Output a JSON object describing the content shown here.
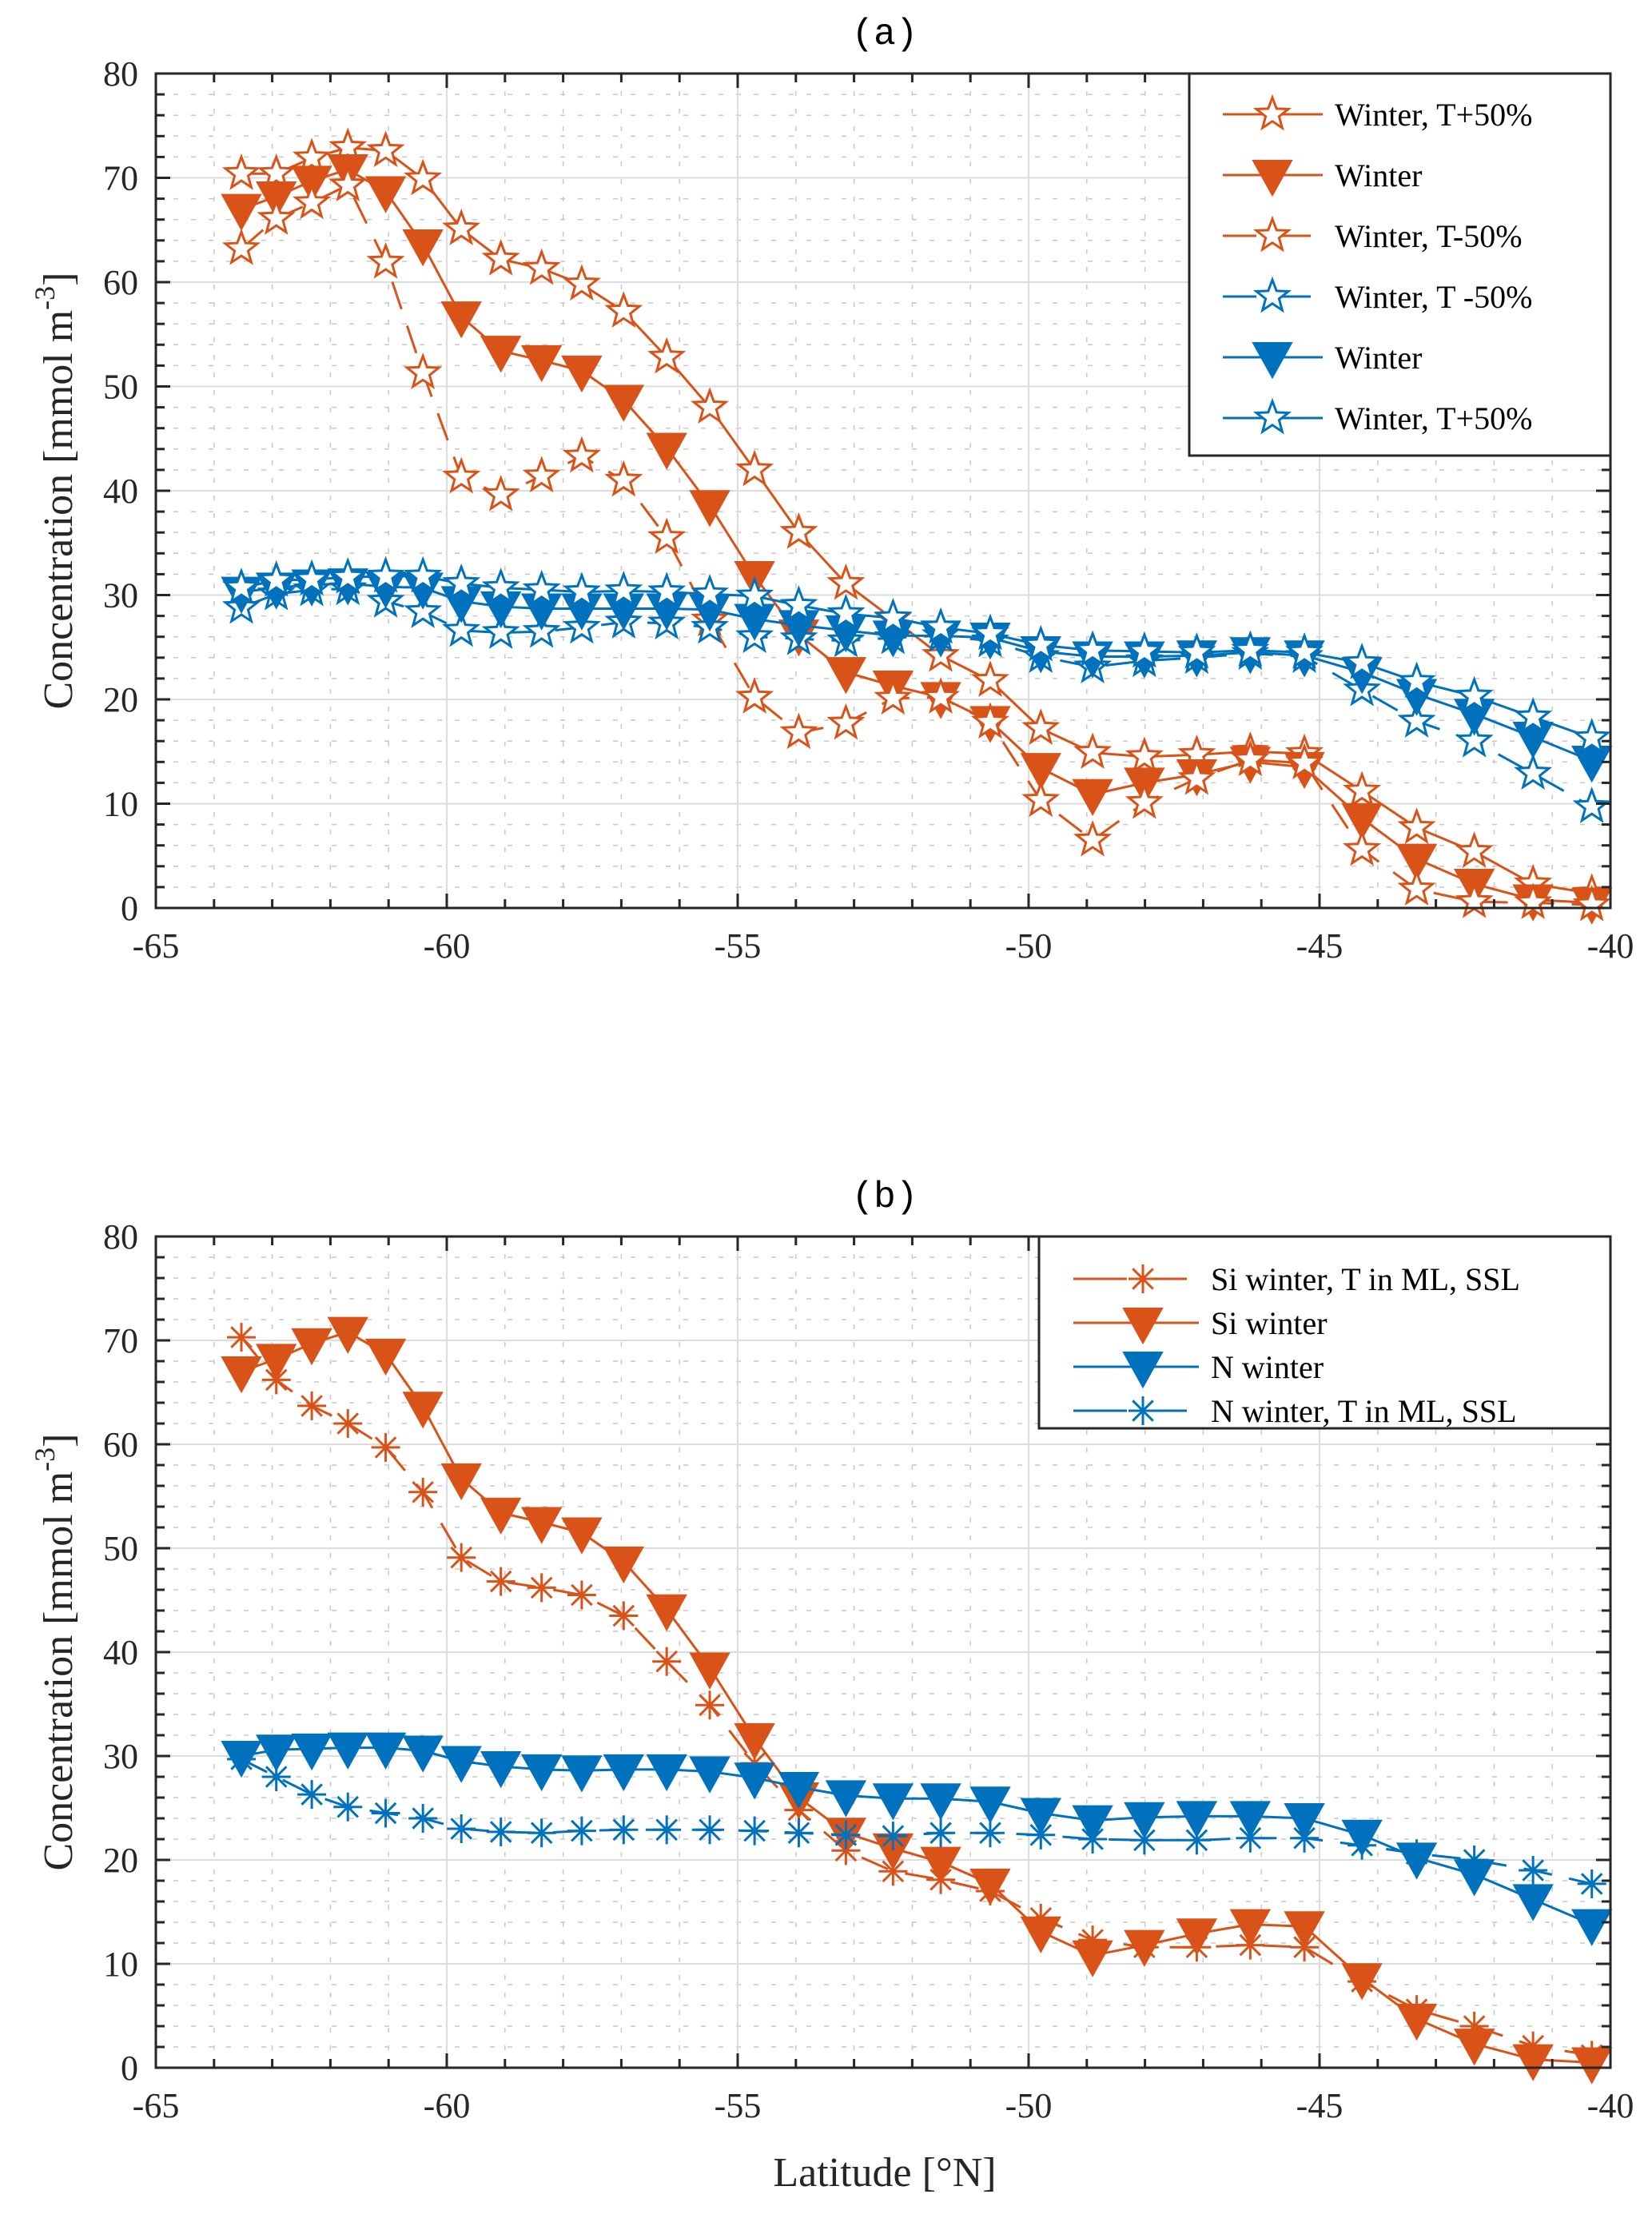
{
  "colors": {
    "orange": "#D95319",
    "blue": "#0072BD",
    "axis": "#262626",
    "grid_major": "#DCDCDC",
    "grid_minor": "#C8C8C8"
  },
  "chart_data": [
    {
      "type": "line",
      "panel": "a",
      "title": "(a)",
      "xlabel": "",
      "ylabel": "Concentration [mmol m^-3]",
      "ylabel_main": "Concentration [mmol m",
      "ylabel_sup": "-3",
      "ylabel_end": "]",
      "xlim": [
        -65,
        -40
      ],
      "ylim": [
        0,
        80
      ],
      "xticks": [
        -65,
        -60,
        -55,
        -50,
        -45,
        -40
      ],
      "xtick_labels": [
        "-65",
        "-60",
        "-55",
        "-50",
        "-45",
        "-40"
      ],
      "yticks": [
        0,
        10,
        20,
        30,
        40,
        50,
        60,
        70,
        80
      ],
      "ytick_labels": [
        "0",
        "10",
        "20",
        "30",
        "40",
        "50",
        "60",
        "70",
        "80"
      ],
      "grid": "major solid, minor dotted",
      "legend_position": "top-right",
      "x": [
        -63.53,
        -62.93,
        -62.32,
        -61.7,
        -61.05,
        -60.41,
        -59.75,
        -59.07,
        -58.37,
        -57.68,
        -56.96,
        -56.22,
        -55.48,
        -54.71,
        -53.95,
        -53.14,
        -52.33,
        -51.51,
        -50.66,
        -49.79,
        -48.9,
        -48.01,
        -47.11,
        -46.19,
        -45.26,
        -44.27,
        -43.33,
        -42.34,
        -41.33,
        -40.32
      ],
      "series": [
        {
          "name": "Winter, T+50%",
          "color": "orange",
          "marker": "star-open",
          "line": "solid",
          "values": [
            70.4,
            70.4,
            71.9,
            72.9,
            72.6,
            69.9,
            65.1,
            62.2,
            61.3,
            59.8,
            57.2,
            52.8,
            48.0,
            42.0,
            36.0,
            31.1,
            27.7,
            24.2,
            21.8,
            17.2,
            14.9,
            14.5,
            14.7,
            15.0,
            14.8,
            11.2,
            7.7,
            5.4,
            2.3,
            1.4
          ]
        },
        {
          "name": "Winter",
          "color": "orange",
          "marker": "triangle-down-filled",
          "line": "solid",
          "values": [
            67.0,
            68.2,
            69.7,
            70.8,
            68.7,
            63.6,
            56.7,
            53.4,
            52.5,
            51.5,
            48.7,
            44.1,
            38.6,
            31.8,
            26.2,
            22.6,
            21.3,
            20.2,
            17.9,
            13.4,
            10.9,
            12.0,
            12.8,
            14.0,
            13.5,
            8.6,
            4.7,
            2.3,
            0.8,
            0.5
          ]
        },
        {
          "name": "Winter, T-50%",
          "color": "orange",
          "marker": "star-open",
          "line": "dashed",
          "values": [
            63.2,
            66.1,
            67.6,
            69.3,
            61.9,
            51.3,
            41.3,
            39.6,
            41.4,
            43.3,
            41.0,
            35.5,
            27.6,
            20.2,
            16.8,
            17.7,
            20.1,
            20.2,
            17.8,
            10.3,
            6.5,
            10.1,
            12.4,
            14.2,
            13.9,
            5.6,
            1.8,
            0.6,
            0.5,
            0.3
          ]
        },
        {
          "name": "Winter, T -50%",
          "color": "blue",
          "marker": "star-open",
          "line": "dashed",
          "values": [
            28.8,
            30.1,
            30.5,
            30.6,
            29.4,
            28.4,
            26.6,
            26.4,
            26.5,
            26.9,
            27.4,
            27.3,
            26.9,
            26.0,
            25.8,
            25.6,
            25.9,
            26.1,
            25.6,
            24.1,
            23.1,
            23.7,
            24.0,
            24.4,
            24.1,
            20.9,
            17.9,
            16.0,
            12.9,
            9.7
          ]
        },
        {
          "name": "Winter",
          "color": "blue",
          "marker": "triangle-down-filled",
          "line": "solid",
          "values": [
            30.3,
            30.7,
            31.0,
            31.1,
            30.8,
            30.7,
            29.4,
            28.9,
            28.7,
            28.7,
            28.7,
            28.7,
            28.6,
            27.7,
            27.1,
            26.6,
            26.1,
            26.1,
            25.9,
            24.6,
            24.1,
            24.1,
            24.2,
            24.5,
            24.2,
            22.6,
            20.5,
            18.6,
            16.4,
            14.1
          ]
        },
        {
          "name": "Winter, T+50%",
          "color": "blue",
          "marker": "star-open",
          "line": "solid",
          "values": [
            30.7,
            31.4,
            31.5,
            31.7,
            31.8,
            31.8,
            31.1,
            30.7,
            30.5,
            30.3,
            30.4,
            30.3,
            30.1,
            29.9,
            29.0,
            28.2,
            27.8,
            26.9,
            26.3,
            25.2,
            24.7,
            24.6,
            24.5,
            24.7,
            24.5,
            23.5,
            21.7,
            20.3,
            18.3,
            16.3
          ]
        }
      ]
    },
    {
      "type": "line",
      "panel": "b",
      "title": "(b)",
      "xlabel": "Latitude [°N]",
      "ylabel": "Concentration [mmol m^-3]",
      "ylabel_main": "Concentration [mmol m",
      "ylabel_sup": "-3",
      "ylabel_end": "]",
      "xlim": [
        -65,
        -40
      ],
      "ylim": [
        0,
        80
      ],
      "xticks": [
        -65,
        -60,
        -55,
        -50,
        -45,
        -40
      ],
      "xtick_labels": [
        "-65",
        "-60",
        "-55",
        "-50",
        "-45",
        "-40"
      ],
      "yticks": [
        0,
        10,
        20,
        30,
        40,
        50,
        60,
        70,
        80
      ],
      "ytick_labels": [
        "0",
        "10",
        "20",
        "30",
        "40",
        "50",
        "60",
        "70",
        "80"
      ],
      "grid": "major solid, minor dotted",
      "legend_position": "top-right",
      "x": [
        -63.53,
        -62.93,
        -62.32,
        -61.7,
        -61.05,
        -60.41,
        -59.75,
        -59.07,
        -58.37,
        -57.68,
        -56.96,
        -56.22,
        -55.48,
        -54.71,
        -53.95,
        -53.14,
        -52.33,
        -51.51,
        -50.66,
        -49.79,
        -48.9,
        -48.01,
        -47.11,
        -46.19,
        -45.26,
        -44.27,
        -43.33,
        -42.34,
        -41.33,
        -40.32
      ],
      "series": [
        {
          "name": "Si winter, T in ML, SSL",
          "color": "orange",
          "marker": "asterisk",
          "line": "dashed",
          "values": [
            70.3,
            66.2,
            63.7,
            62.0,
            59.7,
            55.4,
            49.1,
            46.8,
            46.2,
            45.5,
            43.5,
            39.1,
            34.9,
            29.3,
            24.8,
            20.9,
            18.9,
            18.1,
            17.0,
            14.4,
            12.3,
            11.6,
            11.6,
            11.8,
            11.6,
            8.3,
            5.6,
            4.0,
            2.1,
            1.2
          ]
        },
        {
          "name": "Si winter",
          "color": "orange",
          "marker": "triangle-down-filled",
          "line": "solid",
          "values": [
            67.0,
            68.2,
            69.7,
            70.8,
            68.7,
            63.6,
            56.7,
            53.4,
            52.5,
            51.5,
            48.7,
            44.1,
            38.5,
            31.7,
            26.0,
            22.6,
            21.1,
            19.8,
            17.7,
            13.1,
            10.8,
            11.8,
            12.9,
            13.8,
            13.6,
            8.6,
            4.7,
            2.3,
            0.8,
            0.5
          ]
        },
        {
          "name": "N winter",
          "color": "blue",
          "marker": "triangle-down-filled",
          "line": "solid",
          "values": [
            30.0,
            30.6,
            30.7,
            30.8,
            30.8,
            30.5,
            29.5,
            29.0,
            28.7,
            28.6,
            28.7,
            28.7,
            28.5,
            27.9,
            27.0,
            26.2,
            25.9,
            25.9,
            25.6,
            24.5,
            23.8,
            24.1,
            24.2,
            24.2,
            24.0,
            22.4,
            20.2,
            18.6,
            16.2,
            13.8
          ]
        },
        {
          "name": "N winter, T in ML, SSL",
          "color": "blue",
          "marker": "asterisk",
          "line": "dashed",
          "values": [
            29.7,
            28.0,
            26.3,
            25.1,
            24.5,
            24.0,
            23.0,
            22.7,
            22.6,
            22.8,
            22.9,
            22.9,
            22.9,
            22.8,
            22.6,
            22.4,
            22.3,
            22.6,
            22.6,
            22.4,
            22.0,
            21.9,
            21.9,
            22.1,
            22.1,
            21.4,
            20.6,
            20.0,
            19.0,
            17.7
          ]
        }
      ]
    }
  ]
}
